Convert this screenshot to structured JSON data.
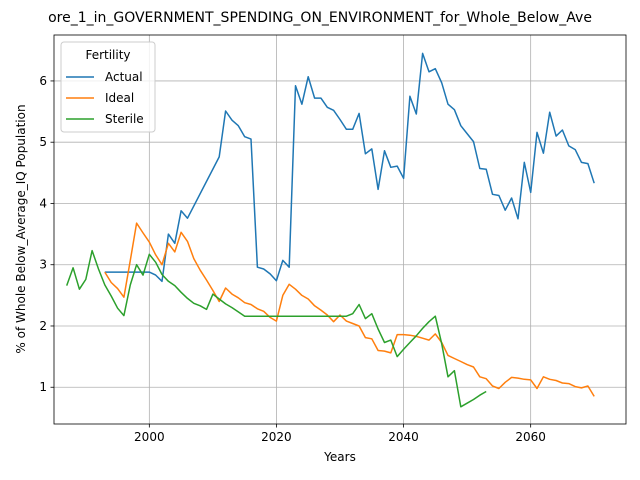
{
  "chart_data": {
    "type": "line",
    "title": "ore_1_in_GOVERNMENT_SPENDING_ON_ENVIRONMENT_for_Whole_Below_Ave",
    "xlabel": "Years",
    "ylabel": "% of Whole Below_Average_IQ Population",
    "xlim": [
      1985,
      2075
    ],
    "ylim": [
      0.4,
      6.75
    ],
    "xticks": [
      2000,
      2020,
      2040,
      2060
    ],
    "yticks": [
      1,
      2,
      3,
      4,
      5,
      6
    ],
    "grid": true,
    "legend": {
      "title": "Fertility",
      "placement": "top-left"
    },
    "series": [
      {
        "name": "Actual",
        "color": "#1f77b4",
        "points": [
          [
            1993,
            2.88
          ],
          [
            1999,
            2.88
          ],
          [
            2000,
            2.88
          ],
          [
            2001,
            2.83
          ],
          [
            2002,
            2.73
          ],
          [
            2003,
            3.5
          ],
          [
            2004,
            3.35
          ],
          [
            2005,
            3.88
          ],
          [
            2006,
            3.76
          ],
          [
            2011,
            4.76
          ],
          [
            2012,
            5.51
          ],
          [
            2013,
            5.36
          ],
          [
            2014,
            5.27
          ],
          [
            2015,
            5.09
          ],
          [
            2016,
            5.05
          ],
          [
            2017,
            2.96
          ],
          [
            2018,
            2.93
          ],
          [
            2019,
            2.85
          ],
          [
            2020,
            2.74
          ],
          [
            2021,
            3.07
          ],
          [
            2022,
            2.96
          ],
          [
            2023,
            5.92
          ],
          [
            2024,
            5.62
          ],
          [
            2025,
            6.07
          ],
          [
            2026,
            5.72
          ],
          [
            2027,
            5.72
          ],
          [
            2028,
            5.57
          ],
          [
            2029,
            5.52
          ],
          [
            2030,
            5.37
          ],
          [
            2031,
            5.21
          ],
          [
            2032,
            5.21
          ],
          [
            2033,
            5.47
          ],
          [
            2034,
            4.81
          ],
          [
            2035,
            4.89
          ],
          [
            2036,
            4.23
          ],
          [
            2037,
            4.86
          ],
          [
            2038,
            4.59
          ],
          [
            2039,
            4.61
          ],
          [
            2040,
            4.41
          ],
          [
            2041,
            5.75
          ],
          [
            2042,
            5.46
          ],
          [
            2043,
            6.45
          ],
          [
            2044,
            6.15
          ],
          [
            2045,
            6.2
          ],
          [
            2046,
            5.97
          ],
          [
            2047,
            5.62
          ],
          [
            2048,
            5.53
          ],
          [
            2049,
            5.27
          ],
          [
            2050,
            5.14
          ],
          [
            2051,
            5.01
          ],
          [
            2052,
            4.57
          ],
          [
            2053,
            4.56
          ],
          [
            2054,
            4.15
          ],
          [
            2055,
            4.13
          ],
          [
            2056,
            3.89
          ],
          [
            2057,
            4.09
          ],
          [
            2058,
            3.75
          ],
          [
            2059,
            4.67
          ],
          [
            2060,
            4.18
          ],
          [
            2061,
            5.16
          ],
          [
            2062,
            4.82
          ],
          [
            2063,
            5.49
          ],
          [
            2064,
            5.1
          ],
          [
            2065,
            5.2
          ],
          [
            2066,
            4.94
          ],
          [
            2067,
            4.88
          ],
          [
            2068,
            4.67
          ],
          [
            2069,
            4.65
          ],
          [
            2070,
            4.33
          ]
        ]
      },
      {
        "name": "Ideal",
        "color": "#ff7f0e",
        "points": [
          [
            1993,
            2.88
          ],
          [
            1994,
            2.71
          ],
          [
            1995,
            2.61
          ],
          [
            1996,
            2.47
          ],
          [
            1997,
            3.07
          ],
          [
            1998,
            3.68
          ],
          [
            1999,
            3.52
          ],
          [
            2000,
            3.37
          ],
          [
            2001,
            3.16
          ],
          [
            2002,
            3.0
          ],
          [
            2003,
            3.35
          ],
          [
            2004,
            3.21
          ],
          [
            2005,
            3.53
          ],
          [
            2006,
            3.38
          ],
          [
            2007,
            3.1
          ],
          [
            2008,
            2.91
          ],
          [
            2009,
            2.75
          ],
          [
            2010,
            2.58
          ],
          [
            2011,
            2.4
          ],
          [
            2012,
            2.62
          ],
          [
            2013,
            2.52
          ],
          [
            2014,
            2.46
          ],
          [
            2015,
            2.38
          ],
          [
            2016,
            2.35
          ],
          [
            2017,
            2.28
          ],
          [
            2018,
            2.24
          ],
          [
            2019,
            2.14
          ],
          [
            2020,
            2.08
          ],
          [
            2021,
            2.5
          ],
          [
            2022,
            2.68
          ],
          [
            2023,
            2.6
          ],
          [
            2024,
            2.5
          ],
          [
            2025,
            2.44
          ],
          [
            2026,
            2.33
          ],
          [
            2027,
            2.26
          ],
          [
            2028,
            2.18
          ],
          [
            2029,
            2.07
          ],
          [
            2030,
            2.18
          ],
          [
            2031,
            2.08
          ],
          [
            2032,
            2.04
          ],
          [
            2033,
            2.0
          ],
          [
            2034,
            1.81
          ],
          [
            2035,
            1.79
          ],
          [
            2036,
            1.6
          ],
          [
            2037,
            1.59
          ],
          [
            2038,
            1.56
          ],
          [
            2039,
            1.86
          ],
          [
            2040,
            1.86
          ],
          [
            2041,
            1.85
          ],
          [
            2042,
            1.83
          ],
          [
            2043,
            1.8
          ],
          [
            2044,
            1.77
          ],
          [
            2045,
            1.87
          ],
          [
            2046,
            1.73
          ],
          [
            2047,
            1.52
          ],
          [
            2048,
            1.47
          ],
          [
            2049,
            1.42
          ],
          [
            2050,
            1.37
          ],
          [
            2051,
            1.33
          ],
          [
            2052,
            1.17
          ],
          [
            2053,
            1.14
          ],
          [
            2054,
            1.02
          ],
          [
            2055,
            0.98
          ],
          [
            2056,
            1.08
          ],
          [
            2057,
            1.16
          ],
          [
            2058,
            1.15
          ],
          [
            2059,
            1.13
          ],
          [
            2060,
            1.12
          ],
          [
            2061,
            0.98
          ],
          [
            2062,
            1.17
          ],
          [
            2063,
            1.13
          ],
          [
            2064,
            1.11
          ],
          [
            2065,
            1.07
          ],
          [
            2066,
            1.06
          ],
          [
            2067,
            1.01
          ],
          [
            2068,
            0.99
          ],
          [
            2069,
            1.02
          ],
          [
            2070,
            0.85
          ]
        ]
      },
      {
        "name": "Sterile",
        "color": "#2ca02c",
        "points": [
          [
            1987,
            2.66
          ],
          [
            1988,
            2.95
          ],
          [
            1989,
            2.6
          ],
          [
            1990,
            2.76
          ],
          [
            1991,
            3.23
          ],
          [
            1992,
            2.93
          ],
          [
            1993,
            2.67
          ],
          [
            1994,
            2.49
          ],
          [
            1995,
            2.29
          ],
          [
            1996,
            2.17
          ],
          [
            1997,
            2.67
          ],
          [
            1998,
            3.0
          ],
          [
            1999,
            2.83
          ],
          [
            2000,
            3.17
          ],
          [
            2001,
            3.04
          ],
          [
            2002,
            2.84
          ],
          [
            2003,
            2.73
          ],
          [
            2004,
            2.66
          ],
          [
            2005,
            2.55
          ],
          [
            2006,
            2.45
          ],
          [
            2007,
            2.37
          ],
          [
            2008,
            2.33
          ],
          [
            2009,
            2.27
          ],
          [
            2010,
            2.52
          ],
          [
            2011,
            2.44
          ],
          [
            2012,
            2.36
          ],
          [
            2013,
            2.3
          ],
          [
            2014,
            2.23
          ],
          [
            2015,
            2.16
          ],
          [
            2016,
            2.16
          ],
          [
            2020,
            2.16
          ],
          [
            2025,
            2.16
          ],
          [
            2030,
            2.16
          ],
          [
            2031,
            2.16
          ],
          [
            2032,
            2.2
          ],
          [
            2033,
            2.35
          ],
          [
            2034,
            2.12
          ],
          [
            2035,
            2.2
          ],
          [
            2036,
            1.95
          ],
          [
            2037,
            1.73
          ],
          [
            2038,
            1.77
          ],
          [
            2039,
            1.5
          ],
          [
            2040,
            1.62
          ],
          [
            2041,
            1.73
          ],
          [
            2042,
            1.84
          ],
          [
            2043,
            1.96
          ],
          [
            2044,
            2.07
          ],
          [
            2045,
            2.16
          ],
          [
            2046,
            1.71
          ],
          [
            2047,
            1.17
          ],
          [
            2048,
            1.27
          ],
          [
            2049,
            0.68
          ],
          [
            2050,
            0.74
          ],
          [
            2051,
            0.8
          ],
          [
            2052,
            0.87
          ],
          [
            2053,
            0.93
          ]
        ]
      }
    ]
  }
}
